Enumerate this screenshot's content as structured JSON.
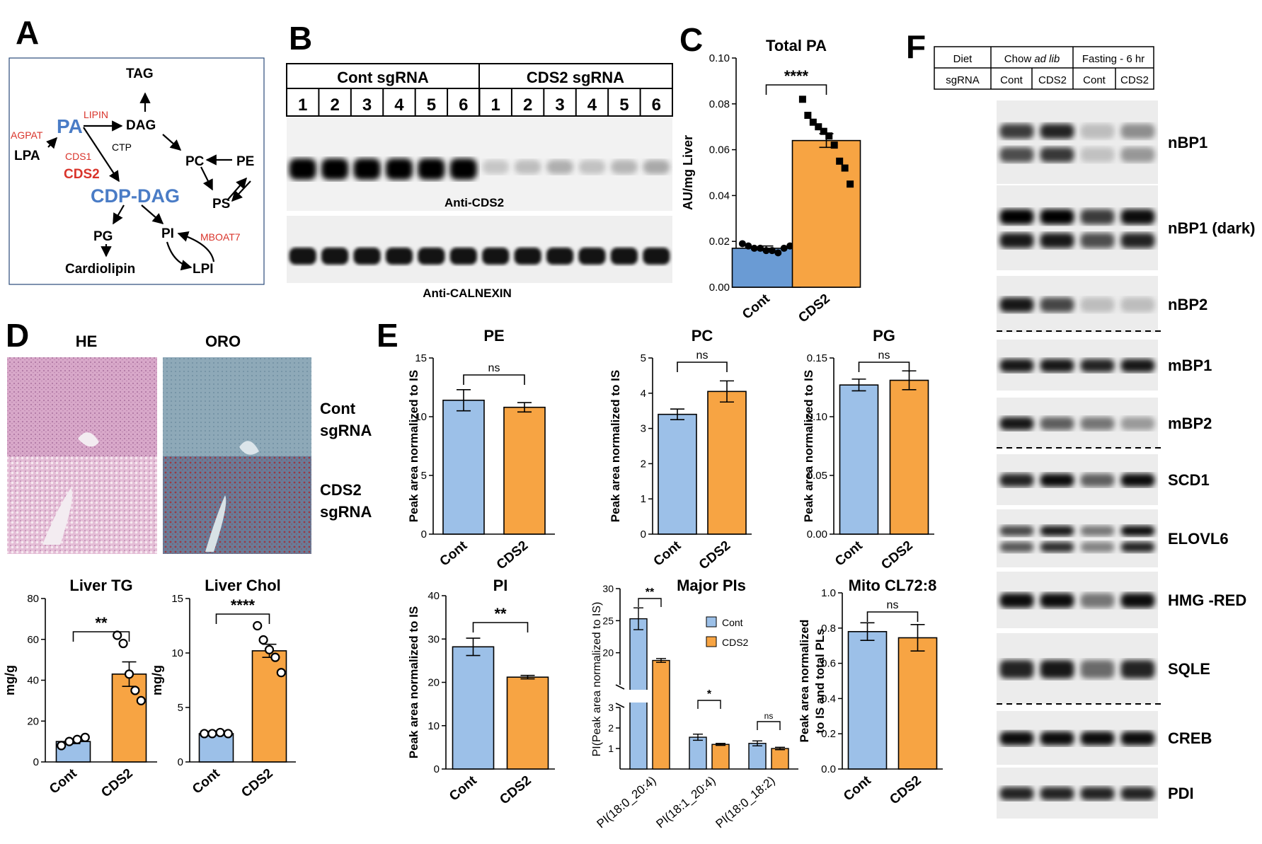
{
  "colors": {
    "cont": "#6a9bd4",
    "cont_light": "#9cc0e8",
    "cds2": "#f7a443",
    "cds2_red": "#e03a2f",
    "blue": "#4a7cc6",
    "red": "#d9342b"
  },
  "panelA": {
    "label": "A",
    "nodes": {
      "tag": "TAG",
      "pa": "PA",
      "dag": "DAG",
      "lpa": "LPA",
      "agpat": "AGPAT",
      "lipin": "LIPIN",
      "cds1": "CDS1",
      "cds2": "CDS2",
      "ctp": "CTP",
      "cdpdag": "CDP-DAG",
      "pc": "PC",
      "pe": "PE",
      "ps": "PS",
      "pg": "PG",
      "pi": "PI",
      "mboat7": "MBOAT7",
      "lpi": "LPI",
      "cardiolipin": "Cardiolipin"
    }
  },
  "panelB": {
    "label": "B",
    "group1": "Cont sgRNA",
    "group2": "CDS2 sgRNA",
    "lanes": [
      "1",
      "2",
      "3",
      "4",
      "5",
      "6",
      "1",
      "2",
      "3",
      "4",
      "5",
      "6"
    ],
    "blot1": "Anti-CDS2",
    "blot2": "Anti-CALNEXIN"
  },
  "panelC": {
    "label": "C",
    "sig": "****",
    "chart_data": {
      "type": "bar",
      "title": "Total PA",
      "ylabel": "AU/mg Liver",
      "categories": [
        "Cont",
        "CDS2"
      ],
      "values": [
        0.017,
        0.064
      ],
      "errors": [
        0.001,
        0.003
      ],
      "ylim": [
        0,
        0.1
      ],
      "yticks": [
        "0.00",
        "0.02",
        "0.04",
        "0.06",
        "0.08",
        "0.10"
      ],
      "points": [
        [
          0.019,
          0.018,
          0.017,
          0.017,
          0.016,
          0.016,
          0.015,
          0.017,
          0.018
        ],
        [
          0.082,
          0.075,
          0.072,
          0.07,
          0.068,
          0.066,
          0.062,
          0.055,
          0.052,
          0.045
        ]
      ]
    }
  },
  "panelD": {
    "label": "D",
    "he": "HE",
    "oro": "ORO",
    "row1": [
      "Cont",
      "sgRNA"
    ],
    "row2": [
      "CDS2",
      "sgRNA"
    ],
    "tg": {
      "sig": "**",
      "chart_data": {
        "type": "bar",
        "title": "Liver TG",
        "ylabel": "mg/g",
        "categories": [
          "Cont",
          "CDS2"
        ],
        "values": [
          10,
          43
        ],
        "errors": [
          1,
          6
        ],
        "ylim": [
          0,
          80
        ],
        "yticks": [
          "0",
          "20",
          "40",
          "60",
          "80"
        ],
        "points": [
          [
            8,
            10,
            11,
            12
          ],
          [
            62,
            58,
            43,
            35,
            30
          ]
        ]
      }
    },
    "chol": {
      "sig": "****",
      "chart_data": {
        "type": "bar",
        "title": "Liver Chol",
        "ylabel": "mg/g",
        "categories": [
          "Cont",
          "CDS2"
        ],
        "values": [
          2.6,
          10.2
        ],
        "errors": [
          0.1,
          0.6
        ],
        "ylim": [
          0,
          15
        ],
        "yticks": [
          "0",
          "5",
          "10",
          "15"
        ],
        "points": [
          [
            2.6,
            2.6,
            2.7,
            2.6
          ],
          [
            12.5,
            11.2,
            10.3,
            9.6,
            8.2
          ]
        ]
      }
    }
  },
  "panelE": {
    "label": "E",
    "pe": {
      "sig": "ns",
      "chart_data": {
        "type": "bar",
        "title": "PE",
        "ylabel": "Peak area normalized to IS",
        "categories": [
          "Cont",
          "CDS2"
        ],
        "values": [
          11.4,
          10.8
        ],
        "errors": [
          0.9,
          0.4
        ],
        "ylim": [
          0,
          15
        ],
        "yticks": [
          "0",
          "5",
          "10",
          "15"
        ]
      }
    },
    "pc": {
      "sig": "ns",
      "chart_data": {
        "type": "bar",
        "title": "PC",
        "ylabel": "Peak area normalized to IS",
        "categories": [
          "Cont",
          "CDS2"
        ],
        "values": [
          3.4,
          4.05
        ],
        "errors": [
          0.15,
          0.3
        ],
        "ylim": [
          0,
          5
        ],
        "yticks": [
          "0",
          "1",
          "2",
          "3",
          "4",
          "5"
        ]
      }
    },
    "pg": {
      "sig": "ns",
      "chart_data": {
        "type": "bar",
        "title": "PG",
        "ylabel": "Peak area normalized to IS",
        "categories": [
          "Cont",
          "CDS2"
        ],
        "values": [
          0.127,
          0.131
        ],
        "errors": [
          0.005,
          0.008
        ],
        "ylim": [
          0,
          0.15
        ],
        "yticks": [
          "0.00",
          "0.05",
          "0.10",
          "0.15"
        ]
      }
    },
    "pi": {
      "sig": "**",
      "chart_data": {
        "type": "bar",
        "title": "PI",
        "ylabel": "Peak area normalized to IS",
        "categories": [
          "Cont",
          "CDS2"
        ],
        "values": [
          28.2,
          21.2
        ],
        "errors": [
          2,
          0.4
        ],
        "ylim": [
          0,
          40
        ],
        "yticks": [
          "0",
          "10",
          "20",
          "30",
          "40"
        ]
      }
    },
    "majorpi": {
      "sigs": [
        "**",
        "*",
        "ns"
      ],
      "legend": [
        "Cont",
        "CDS2"
      ],
      "chart_data": {
        "type": "bar",
        "title": "Major PIs",
        "ylabel": "PI(Peak area normalized to IS)",
        "categories": [
          "PI(18:0_20:4)",
          "PI(18:1_20:4)",
          "PI(18:0_18:2)"
        ],
        "series": [
          {
            "name": "Cont",
            "values": [
              25.3,
              1.55,
              1.25
            ],
            "errors": [
              1.7,
              0.15,
              0.12
            ]
          },
          {
            "name": "CDS2",
            "values": [
              18.8,
              1.2,
              1.0
            ],
            "errors": [
              0.3,
              0.05,
              0.06
            ]
          }
        ],
        "yticks": [
          "1",
          "2",
          "3",
          "20",
          "25",
          "30"
        ],
        "broken_axis": [
          3,
          15
        ]
      }
    },
    "cl": {
      "sig": "ns",
      "chart_data": {
        "type": "bar",
        "title": "Mito CL72:8",
        "ylabel": [
          "Peak area normalized",
          "to IS and total  PLs"
        ],
        "categories": [
          "Cont",
          "CDS2"
        ],
        "values": [
          0.78,
          0.745
        ],
        "errors": [
          0.05,
          0.075
        ],
        "ylim": [
          0,
          1
        ],
        "yticks": [
          "0.0",
          "0.2",
          "0.4",
          "0.6",
          "0.8",
          "1.0"
        ]
      }
    }
  },
  "panelF": {
    "label": "F",
    "hdr": {
      "diet": "Diet",
      "chow": "Chow ",
      "adlib": "ad lib",
      "fasting": "Fasting - 6 hr",
      "sgrna": "sgRNA",
      "cont": "Cont",
      "cds2": "CDS2"
    },
    "blots": [
      {
        "name": "nBP1",
        "bands": [
          [
            0.75,
            0.85,
            0.2,
            0.4
          ]
        ],
        "double": true
      },
      {
        "name": "nBP1 (dark)",
        "bands": [
          [
            1,
            1,
            0.75,
            0.95
          ]
        ],
        "double": true
      },
      {
        "name": "nBP2",
        "bands": [
          [
            0.9,
            0.7,
            0.2,
            0.2
          ]
        ]
      },
      {
        "name": "mBP1",
        "bands": [
          [
            0.9,
            0.9,
            0.85,
            0.9
          ]
        ]
      },
      {
        "name": "mBP2",
        "bands": [
          [
            0.9,
            0.6,
            0.5,
            0.35
          ]
        ]
      },
      {
        "name": "SCD1",
        "bands": [
          [
            0.85,
            0.95,
            0.6,
            0.95
          ]
        ]
      },
      {
        "name": "ELOVL6",
        "bands": [
          [
            0.7,
            0.9,
            0.5,
            0.95
          ]
        ],
        "double": true
      },
      {
        "name": "HMG   -RED",
        "bands": [
          [
            0.95,
            0.95,
            0.5,
            0.95
          ]
        ]
      },
      {
        "name": "SQLE",
        "bands": [
          [
            0.85,
            0.9,
            0.55,
            0.85
          ]
        ]
      },
      {
        "name": "CREB",
        "bands": [
          [
            0.95,
            0.95,
            0.95,
            0.95
          ]
        ]
      },
      {
        "name": "PDI",
        "bands": [
          [
            0.85,
            0.85,
            0.85,
            0.85
          ]
        ]
      }
    ]
  }
}
